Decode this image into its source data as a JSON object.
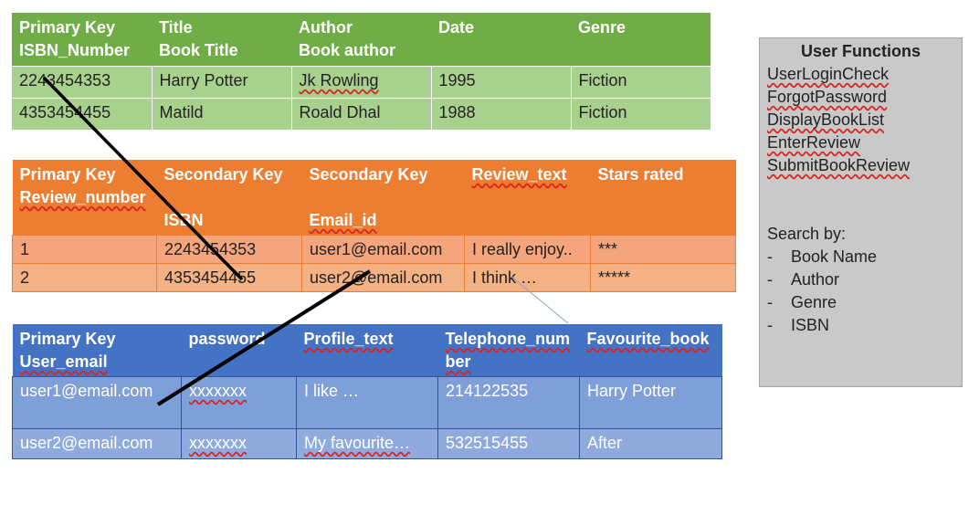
{
  "books": {
    "headers": [
      [
        "Primary Key",
        "ISBN_Number"
      ],
      [
        "Title",
        "Book Title"
      ],
      [
        "Author",
        "Book author"
      ],
      [
        "Date",
        ""
      ],
      [
        "Genre",
        ""
      ]
    ],
    "rows": [
      [
        "2243454353",
        "Harry Potter",
        "Jk Rowling",
        "1995",
        "Fiction"
      ],
      [
        "4353454455",
        "Matild",
        "Roald Dhal",
        "1988",
        "Fiction"
      ]
    ]
  },
  "reviews": {
    "headers": [
      [
        "Primary Key",
        "Review_number"
      ],
      [
        "Secondary Key",
        "ISBN"
      ],
      [
        "Secondary Key",
        "Email_id"
      ],
      [
        "Review_text",
        ""
      ],
      [
        "Stars rated",
        ""
      ]
    ],
    "rows": [
      [
        "1",
        "2243454353",
        "user1@email.com",
        "I really enjoy..",
        "***"
      ],
      [
        "2",
        "4353454455",
        "user2@email.com",
        "I think …",
        "*****"
      ]
    ]
  },
  "users": {
    "headers": [
      [
        "Primary Key",
        "User_email"
      ],
      [
        "password",
        ""
      ],
      [
        "Profile_text",
        ""
      ],
      [
        "Telephone_num",
        "ber"
      ],
      [
        "Favourite_book",
        ""
      ]
    ],
    "rows": [
      [
        "user1@email.com",
        "xxxxxxx",
        "I like …",
        "214122535",
        "Harry Potter"
      ],
      [
        "user2@email.com",
        "xxxxxxx",
        "My favourite…",
        "532515455",
        "After"
      ]
    ]
  },
  "panel": {
    "title": "User Functions",
    "functions": [
      "UserLoginCheck",
      "ForgotPassword",
      "DisplayBookList",
      "EnterReview",
      "SubmitBookReview"
    ],
    "search_label": "Search by:",
    "search_dash": "-",
    "search_items": [
      "Book Name",
      "Author",
      "Genre",
      "ISBN"
    ]
  },
  "colors": {
    "books_header": "#70ad47",
    "books_row": "#a9d18e",
    "reviews_header": "#ed7d31",
    "reviews_row": "#f4b183",
    "users_header": "#4472c4",
    "users_row": "#7f9fd9",
    "panel_bg": "#c9c9c9",
    "link_line": "#000000"
  }
}
